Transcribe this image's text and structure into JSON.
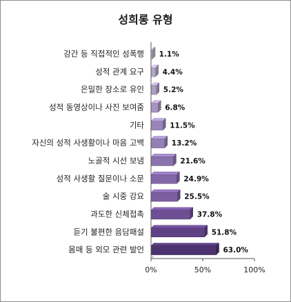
{
  "chart_data": {
    "type": "bar",
    "orientation": "horizontal",
    "title": "성희롱 유형",
    "categories": [
      "강간 등 직접적인 성폭행",
      "성적 관계 요구",
      "은밀한 장소로 유인",
      "성적 동영상이나 사진 보여줌",
      "기타",
      "자신의 성적 사생활이나 마음 고백",
      "노골적 시선 보냄",
      "성적 사생활 질문이나 소문",
      "술 시중 강요",
      "과도한 신체접촉",
      "듣기 불편한 음담패설",
      "몸매 등 외모 관련 발언"
    ],
    "values": [
      1.1,
      4.4,
      5.2,
      6.8,
      11.5,
      13.2,
      21.6,
      24.9,
      25.5,
      37.8,
      51.8,
      63.0
    ],
    "value_labels": [
      "1.1%",
      "4.4%",
      "5.2%",
      "6.8%",
      "11.5%",
      "13.2%",
      "21.6%",
      "24.9%",
      "25.5%",
      "37.8%",
      "51.8%",
      "63.0%"
    ],
    "xlim": [
      0,
      100
    ],
    "xticks": [
      "0%",
      "50%",
      "100%"
    ],
    "grid": false,
    "legend": "none",
    "style": "3d",
    "colors": [
      "#b3b3c7",
      "#b3a8c7",
      "#ac9fc2",
      "#a695c0",
      "#9a85b8",
      "#9481b4",
      "#8a72ad",
      "#8467a8",
      "#7c5fa0",
      "#6e4f93",
      "#5f4286",
      "#4c336f"
    ]
  }
}
